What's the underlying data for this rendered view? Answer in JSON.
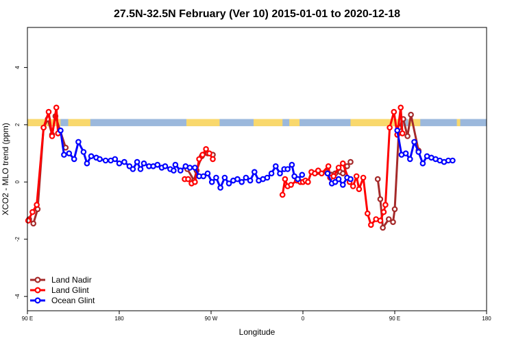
{
  "chart_data": {
    "type": "line",
    "title": "27.5N-32.5N February (Ver 10)   2015-01-01 to 2020-12-18",
    "xlabel": "Longitude",
    "ylabel": "XCO2 - MLO trend (ppm)",
    "xlim": [
      -90,
      180
    ],
    "ylim": [
      -4.5,
      5.4
    ],
    "x_ticks": [
      {
        "x": -90,
        "label": "90 E"
      },
      {
        "x": -36,
        "label": "180"
      },
      {
        "x": 18,
        "label": "90 W"
      },
      {
        "x": 72,
        "label": "0"
      },
      {
        "x": 126,
        "label": "90 E"
      },
      {
        "x": 180,
        "label": "180"
      }
    ],
    "y_ticks": [
      -4,
      -2,
      0,
      2,
      4
    ],
    "legend_position": "bottom-left",
    "land_ocean_band": {
      "y_range": [
        1.95,
        2.2
      ],
      "ocean_color": "#9bb8dc",
      "land_color": "#f9d86c",
      "land_segments": [
        [
          -90,
          -70.5
        ],
        [
          -66,
          -53
        ],
        [
          3.5,
          23
        ],
        [
          43,
          60
        ],
        [
          64,
          70
        ],
        [
          100,
          129
        ],
        [
          134,
          141
        ],
        [
          162.5,
          164.5
        ]
      ]
    },
    "series": [
      {
        "name": "Land Nadir",
        "color": "#a52a2a",
        "segments": [
          [
            [
              -89,
              -1.3
            ],
            [
              -86.5,
              -1.45
            ],
            [
              -84,
              -0.95
            ],
            [
              -80.5,
              1.9
            ],
            [
              -78,
              2.2
            ],
            [
              -75.5,
              1.65
            ],
            [
              -73.5,
              2.3
            ],
            [
              -67.5,
              1.2
            ]
          ],
          [
            [
              4,
              0.45
            ],
            [
              8,
              0.05
            ],
            [
              9.5,
              0.4
            ],
            [
              12.5,
              0.9
            ],
            [
              16,
              1.0
            ],
            [
              19,
              0.95
            ]
          ],
          [
            [
              80.5,
              0.35
            ],
            [
              86,
              0.35
            ],
            [
              91,
              0.3
            ],
            [
              94,
              0.35
            ],
            [
              95.5,
              0.3
            ],
            [
              98,
              0.55
            ],
            [
              100,
              0.7
            ]
          ],
          [
            [
              116,
              0.1
            ],
            [
              117.5,
              -0.6
            ],
            [
              119,
              -1.6
            ],
            [
              122.5,
              -1.3
            ],
            [
              125,
              -1.4
            ],
            [
              126,
              -0.95
            ],
            [
              128.5,
              1.9
            ],
            [
              131,
              2.2
            ],
            [
              133.5,
              1.6
            ],
            [
              135.5,
              2.35
            ],
            [
              140,
              1.1
            ]
          ]
        ]
      },
      {
        "name": "Land Glint",
        "color": "#ff0000",
        "segments": [
          [
            [
              -89.5,
              -1.35
            ],
            [
              -87,
              -1.05
            ],
            [
              -84.5,
              -0.8
            ],
            [
              -80.5,
              1.9
            ],
            [
              -77.5,
              2.45
            ],
            [
              -75.5,
              1.6
            ],
            [
              -73,
              2.6
            ],
            [
              -72,
              1.7
            ]
          ],
          [
            [
              2.5,
              0.1
            ],
            [
              4.5,
              0.1
            ],
            [
              6.5,
              -0.05
            ],
            [
              8.5,
              0.0
            ],
            [
              11,
              0.8
            ],
            [
              13,
              0.95
            ],
            [
              15,
              1.15
            ],
            [
              17,
              1.0
            ],
            [
              19,
              0.8
            ]
          ],
          [
            [
              60,
              -0.45
            ],
            [
              61.5,
              0.1
            ],
            [
              63,
              -0.15
            ],
            [
              65,
              -0.1
            ],
            [
              68.5,
              0.05
            ],
            [
              70.5,
              0.0
            ],
            [
              72,
              0.0
            ],
            [
              73.5,
              0.05
            ],
            [
              75,
              0.0
            ],
            [
              77,
              0.35
            ],
            [
              79,
              0.3
            ],
            [
              81,
              0.4
            ],
            [
              83,
              0.3
            ],
            [
              87,
              0.55
            ],
            [
              88,
              0.15
            ],
            [
              90,
              0.2
            ],
            [
              93,
              0.5
            ],
            [
              95.5,
              0.65
            ],
            [
              99.5,
              0.0
            ],
            [
              101.5,
              -0.15
            ],
            [
              103.5,
              0.2
            ],
            [
              105,
              -0.25
            ],
            [
              107.5,
              0.15
            ],
            [
              110,
              -1.1
            ],
            [
              112,
              -1.5
            ],
            [
              115,
              -1.3
            ],
            [
              117.5,
              -1.35
            ],
            [
              119.5,
              -1.05
            ],
            [
              120.5,
              -0.8
            ],
            [
              123,
              1.9
            ],
            [
              125.5,
              2.45
            ],
            [
              127.5,
              1.65
            ],
            [
              129.5,
              2.6
            ],
            [
              130.5,
              1.7
            ]
          ]
        ]
      },
      {
        "name": "Ocean Glint",
        "color": "#0000ff",
        "segments": [
          [
            [
              -70.5,
              1.8
            ],
            [
              -68.5,
              0.95
            ],
            [
              -65.5,
              1.0
            ],
            [
              -62.5,
              0.8
            ],
            [
              -60,
              1.4
            ],
            [
              -57,
              1.05
            ],
            [
              -55,
              0.65
            ],
            [
              -52.5,
              0.9
            ],
            [
              -49.5,
              0.85
            ],
            [
              -47.5,
              0.8
            ],
            [
              -44,
              0.75
            ],
            [
              -41,
              0.75
            ],
            [
              -38.5,
              0.8
            ],
            [
              -36,
              0.65
            ],
            [
              -33,
              0.7
            ],
            [
              -30,
              0.55
            ],
            [
              -28,
              0.45
            ],
            [
              -25.5,
              0.7
            ],
            [
              -23.5,
              0.45
            ],
            [
              -21.5,
              0.65
            ],
            [
              -18.5,
              0.55
            ],
            [
              -16,
              0.55
            ],
            [
              -13.5,
              0.6
            ],
            [
              -11,
              0.5
            ],
            [
              -9,
              0.55
            ],
            [
              -6,
              0.45
            ],
            [
              -4,
              0.4
            ],
            [
              -3,
              0.6
            ],
            [
              0,
              0.4
            ],
            [
              3,
              0.55
            ],
            [
              5.5,
              0.5
            ],
            [
              8.5,
              0.5
            ],
            [
              11,
              0.2
            ],
            [
              13.5,
              0.2
            ],
            [
              16,
              0.3
            ],
            [
              18.5,
              0.0
            ],
            [
              21,
              0.15
            ],
            [
              23.5,
              -0.2
            ],
            [
              26,
              0.15
            ],
            [
              28.5,
              -0.05
            ],
            [
              31,
              0.05
            ],
            [
              33.5,
              0.1
            ],
            [
              36,
              0.0
            ],
            [
              38.5,
              0.15
            ],
            [
              41,
              0.05
            ],
            [
              43.5,
              0.35
            ],
            [
              46,
              0.05
            ],
            [
              48.5,
              0.1
            ],
            [
              51,
              0.15
            ],
            [
              53.5,
              0.3
            ],
            [
              56,
              0.55
            ],
            [
              58.5,
              0.3
            ],
            [
              61,
              0.45
            ],
            [
              63,
              0.45
            ],
            [
              65.5,
              0.6
            ],
            [
              67,
              0.2
            ],
            [
              69,
              0.1
            ],
            [
              71.5,
              0.25
            ]
          ],
          [
            [
              86.5,
              0.3
            ],
            [
              89,
              -0.05
            ],
            [
              91,
              0.0
            ],
            [
              93,
              0.1
            ],
            [
              95.5,
              -0.1
            ],
            [
              98,
              0.15
            ],
            [
              100,
              0.1
            ]
          ],
          [
            [
              127.5,
              1.8
            ],
            [
              130,
              0.95
            ],
            [
              132.5,
              1.0
            ],
            [
              135,
              0.8
            ],
            [
              137.5,
              1.4
            ],
            [
              140,
              1.05
            ],
            [
              142.5,
              0.65
            ],
            [
              145,
              0.9
            ],
            [
              147.5,
              0.85
            ],
            [
              150,
              0.8
            ],
            [
              152.5,
              0.75
            ],
            [
              155,
              0.7
            ],
            [
              157.5,
              0.75
            ],
            [
              160,
              0.75
            ]
          ]
        ]
      }
    ]
  }
}
